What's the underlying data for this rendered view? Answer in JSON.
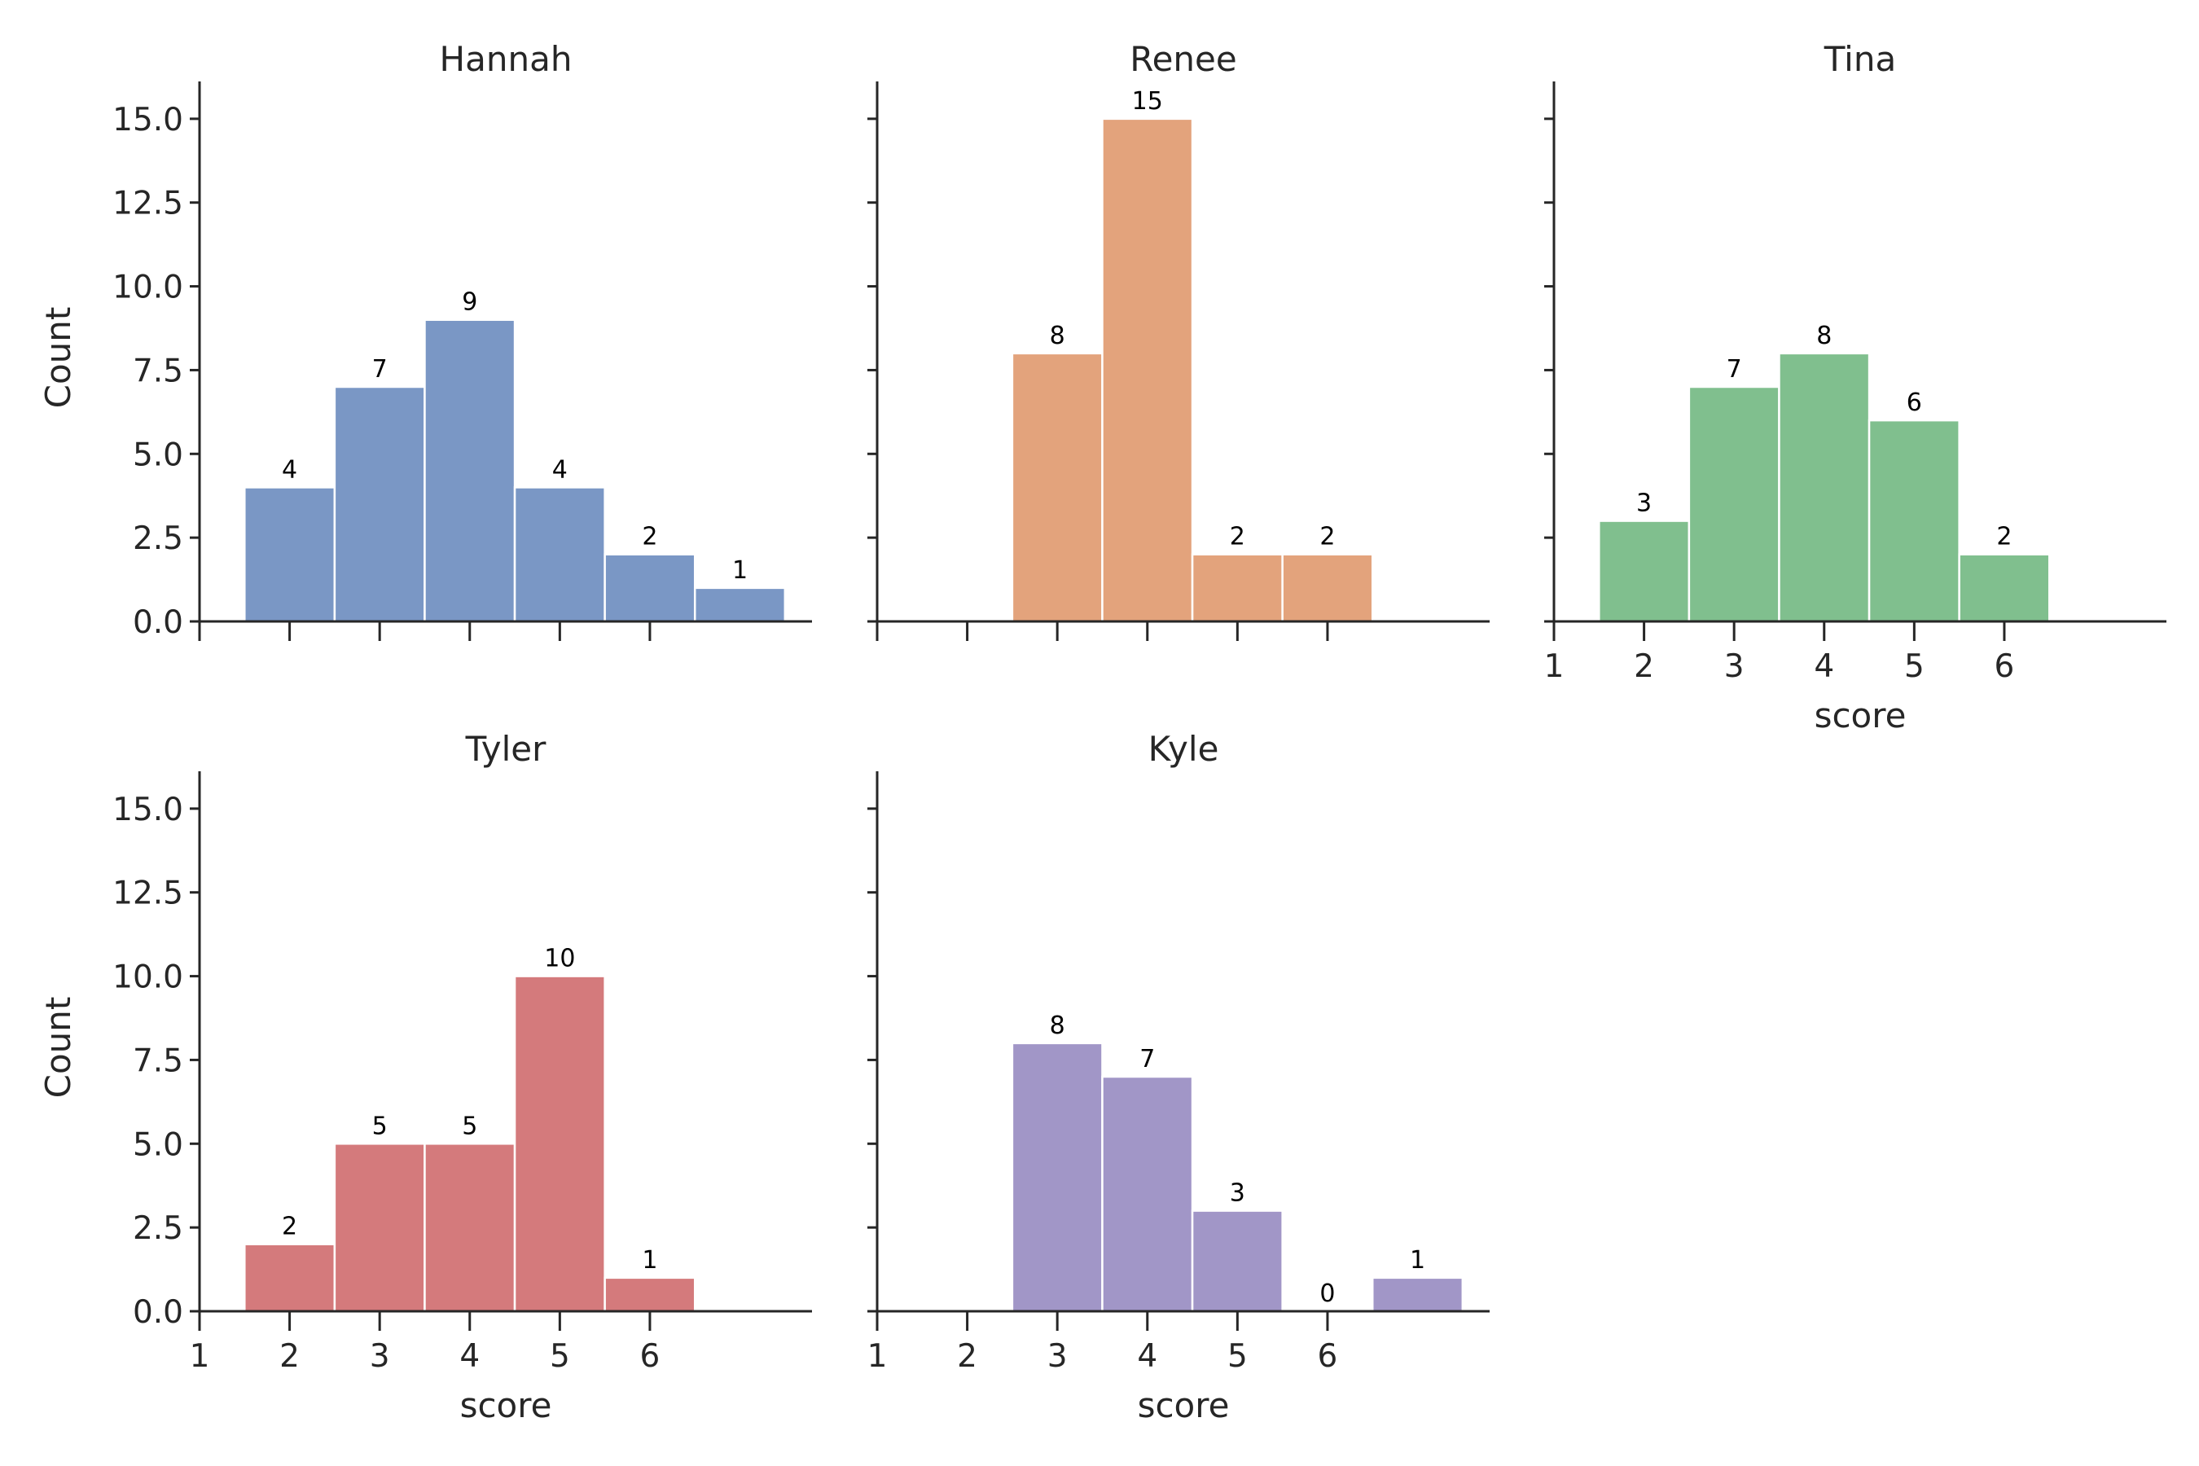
{
  "chart_data": [
    {
      "type": "bar",
      "title": "Hannah",
      "color": "#7a97c5",
      "xlabel": "",
      "ylabel": "Count",
      "xlim": [
        1,
        7.8
      ],
      "ylim": [
        0,
        15.75
      ],
      "xticks": [
        1,
        2,
        3,
        4,
        5,
        6
      ],
      "show_xtick_labels": false,
      "show_ytick_labels": true,
      "yticks": [
        "0.0",
        "2.5",
        "5.0",
        "7.5",
        "10.0",
        "12.5",
        "15.0"
      ],
      "bins": [
        [
          1.5,
          2.5
        ],
        [
          2.5,
          3.5
        ],
        [
          3.5,
          4.5
        ],
        [
          4.5,
          5.5
        ],
        [
          5.5,
          6.5
        ],
        [
          6.5,
          7.5
        ]
      ],
      "values": [
        4,
        7,
        9,
        4,
        2,
        1
      ]
    },
    {
      "type": "bar",
      "title": "Renee",
      "color": "#e3a37c",
      "xlabel": "",
      "ylabel": "",
      "xlim": [
        1,
        7.8
      ],
      "ylim": [
        0,
        15.75
      ],
      "xticks": [
        1,
        2,
        3,
        4,
        5,
        6
      ],
      "show_xtick_labels": false,
      "show_ytick_labels": false,
      "yticks": [
        "0.0",
        "2.5",
        "5.0",
        "7.5",
        "10.0",
        "12.5",
        "15.0"
      ],
      "bins": [
        [
          2.5,
          3.5
        ],
        [
          3.5,
          4.5
        ],
        [
          4.5,
          5.5
        ],
        [
          5.5,
          6.5
        ]
      ],
      "values": [
        8,
        15,
        2,
        2
      ]
    },
    {
      "type": "bar",
      "title": "Tina",
      "color": "#80bf8e",
      "xlabel": "score",
      "ylabel": "",
      "xlim": [
        1,
        7.8
      ],
      "ylim": [
        0,
        15.75
      ],
      "xticks": [
        1,
        2,
        3,
        4,
        5,
        6
      ],
      "show_xtick_labels": true,
      "show_ytick_labels": false,
      "yticks": [
        "0.0",
        "2.5",
        "5.0",
        "7.5",
        "10.0",
        "12.5",
        "15.0"
      ],
      "bins": [
        [
          1.5,
          2.5
        ],
        [
          2.5,
          3.5
        ],
        [
          3.5,
          4.5
        ],
        [
          4.5,
          5.5
        ],
        [
          5.5,
          6.5
        ]
      ],
      "values": [
        3,
        7,
        8,
        6,
        2
      ]
    },
    {
      "type": "bar",
      "title": "Tyler",
      "color": "#d47a7c",
      "xlabel": "score",
      "ylabel": "Count",
      "xlim": [
        1,
        7.8
      ],
      "ylim": [
        0,
        15.75
      ],
      "xticks": [
        1,
        2,
        3,
        4,
        5,
        6
      ],
      "show_xtick_labels": true,
      "show_ytick_labels": true,
      "yticks": [
        "0.0",
        "2.5",
        "5.0",
        "7.5",
        "10.0",
        "12.5",
        "15.0"
      ],
      "bins": [
        [
          1.5,
          2.5
        ],
        [
          2.5,
          3.5
        ],
        [
          3.5,
          4.5
        ],
        [
          4.5,
          5.5
        ],
        [
          5.5,
          6.5
        ]
      ],
      "values": [
        2,
        5,
        5,
        10,
        1
      ]
    },
    {
      "type": "bar",
      "title": "Kyle",
      "color": "#a196c7",
      "xlabel": "score",
      "ylabel": "",
      "xlim": [
        1,
        7.8
      ],
      "ylim": [
        0,
        15.75
      ],
      "xticks": [
        1,
        2,
        3,
        4,
        5,
        6
      ],
      "show_xtick_labels": true,
      "show_ytick_labels": false,
      "yticks": [
        "0.0",
        "2.5",
        "5.0",
        "7.5",
        "10.0",
        "12.5",
        "15.0"
      ],
      "bins": [
        [
          2.5,
          3.5
        ],
        [
          3.5,
          4.5
        ],
        [
          4.5,
          5.5
        ],
        [
          5.5,
          6.5
        ],
        [
          6.5,
          7.5
        ]
      ],
      "values": [
        8,
        7,
        3,
        0,
        1
      ]
    }
  ]
}
